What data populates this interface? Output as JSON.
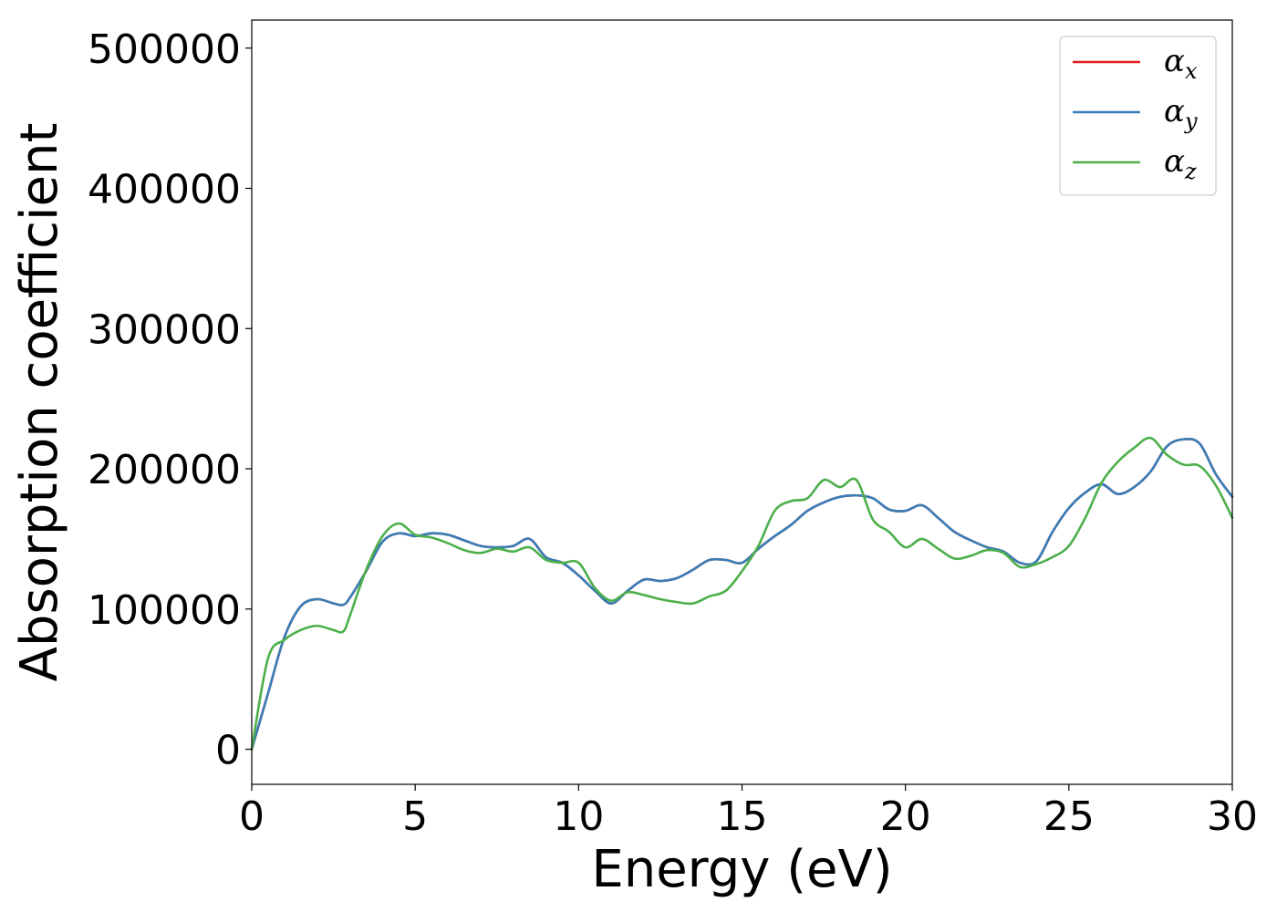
{
  "chart_data": {
    "type": "line",
    "xlabel": "Energy (eV)",
    "ylabel": "Absorption coefficient",
    "xlim": [
      0,
      30
    ],
    "ylim": [
      -25000,
      520000
    ],
    "xticks": [
      0,
      5,
      10,
      15,
      20,
      25,
      30
    ],
    "xtick_labels": [
      "0",
      "5",
      "10",
      "15",
      "20",
      "25",
      "30"
    ],
    "yticks": [
      0,
      100000,
      200000,
      300000,
      400000,
      500000
    ],
    "ytick_labels": [
      "0",
      "100000",
      "200000",
      "300000",
      "400000",
      "500000"
    ],
    "grid": false,
    "legend_position": "top-right",
    "series": [
      {
        "name": "α",
        "name_sub": "x",
        "color": "#e41a1c",
        "x": [
          0,
          0.5,
          1.0,
          1.5,
          2.0,
          2.5,
          2.8,
          3.0,
          3.5,
          4.0,
          4.5,
          5.0,
          5.5,
          6.0,
          6.5,
          7.0,
          7.5,
          8.0,
          8.5,
          9.0,
          9.5,
          10.0,
          10.5,
          11.0,
          11.5,
          12.0,
          12.5,
          13.0,
          13.5,
          14.0,
          14.5,
          15.0,
          15.5,
          16.0,
          16.5,
          17.0,
          17.5,
          18.0,
          18.5,
          19.0,
          19.5,
          20.0,
          20.5,
          21.0,
          21.5,
          22.0,
          22.5,
          23.0,
          23.5,
          24.0,
          24.5,
          25.0,
          25.5,
          26.0,
          26.5,
          27.0,
          27.5,
          28.0,
          28.5,
          29.0,
          29.5,
          30.0
        ],
        "y": [
          0,
          40000,
          80000,
          102000,
          107000,
          104000,
          103000,
          108000,
          127000,
          148000,
          154000,
          152000,
          154000,
          153000,
          149000,
          145000,
          144000,
          145000,
          150000,
          137000,
          133000,
          124000,
          113000,
          104000,
          113000,
          121000,
          120000,
          122000,
          128000,
          135000,
          135000,
          133000,
          143000,
          152000,
          160000,
          170000,
          176000,
          180000,
          181000,
          179000,
          171000,
          170000,
          174000,
          165000,
          155000,
          149000,
          144000,
          141000,
          133000,
          134000,
          155000,
          172000,
          183000,
          189000,
          182000,
          187000,
          198000,
          216000,
          221000,
          218000,
          196000,
          180000
        ]
      },
      {
        "name": "α",
        "name_sub": "y",
        "color": "#377eb8",
        "x": [
          0,
          0.5,
          1.0,
          1.5,
          2.0,
          2.5,
          2.8,
          3.0,
          3.5,
          4.0,
          4.5,
          5.0,
          5.5,
          6.0,
          6.5,
          7.0,
          7.5,
          8.0,
          8.5,
          9.0,
          9.5,
          10.0,
          10.5,
          11.0,
          11.5,
          12.0,
          12.5,
          13.0,
          13.5,
          14.0,
          14.5,
          15.0,
          15.5,
          16.0,
          16.5,
          17.0,
          17.5,
          18.0,
          18.5,
          19.0,
          19.5,
          20.0,
          20.5,
          21.0,
          21.5,
          22.0,
          22.5,
          23.0,
          23.5,
          24.0,
          24.5,
          25.0,
          25.5,
          26.0,
          26.5,
          27.0,
          27.5,
          28.0,
          28.5,
          29.0,
          29.5,
          30.0
        ],
        "y": [
          0,
          40000,
          80000,
          102000,
          107000,
          104000,
          103000,
          108000,
          127000,
          148000,
          154000,
          152000,
          154000,
          153000,
          149000,
          145000,
          144000,
          145000,
          150000,
          137000,
          133000,
          124000,
          113000,
          104000,
          113000,
          121000,
          120000,
          122000,
          128000,
          135000,
          135000,
          133000,
          143000,
          152000,
          160000,
          170000,
          176000,
          180000,
          181000,
          179000,
          171000,
          170000,
          174000,
          165000,
          155000,
          149000,
          144000,
          141000,
          133000,
          134000,
          155000,
          172000,
          183000,
          189000,
          182000,
          187000,
          198000,
          216000,
          221000,
          218000,
          196000,
          180000
        ]
      },
      {
        "name": "α",
        "name_sub": "z",
        "color": "#4daf4a",
        "x": [
          0,
          0.5,
          1.0,
          1.5,
          2.0,
          2.5,
          2.8,
          3.0,
          3.5,
          4.0,
          4.5,
          5.0,
          5.5,
          6.0,
          6.5,
          7.0,
          7.5,
          8.0,
          8.5,
          9.0,
          9.5,
          10.0,
          10.5,
          11.0,
          11.5,
          12.0,
          12.5,
          13.0,
          13.5,
          14.0,
          14.5,
          15.0,
          15.5,
          16.0,
          16.5,
          17.0,
          17.5,
          18.0,
          18.5,
          19.0,
          19.5,
          20.0,
          20.5,
          21.0,
          21.5,
          22.0,
          22.5,
          23.0,
          23.5,
          24.0,
          24.5,
          25.0,
          25.5,
          26.0,
          26.5,
          27.0,
          27.5,
          28.0,
          28.5,
          29.0,
          29.5,
          30.0
        ],
        "y": [
          0,
          65000,
          78000,
          85000,
          88000,
          85000,
          84000,
          95000,
          128000,
          152000,
          161000,
          153000,
          151000,
          147000,
          142000,
          140000,
          143000,
          141000,
          144000,
          135000,
          133000,
          133000,
          115000,
          106000,
          112000,
          110000,
          107000,
          105000,
          104000,
          109000,
          113000,
          127000,
          145000,
          170000,
          177000,
          179000,
          192000,
          187000,
          192000,
          164000,
          155000,
          144000,
          150000,
          143000,
          136000,
          138000,
          142000,
          140000,
          130000,
          132000,
          137000,
          145000,
          165000,
          190000,
          205000,
          215000,
          222000,
          210000,
          203000,
          202000,
          188000,
          165000
        ]
      }
    ]
  }
}
